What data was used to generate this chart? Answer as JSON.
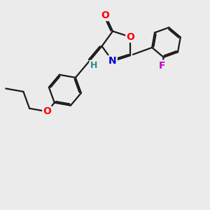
{
  "background_color": "#ebebeb",
  "bond_color": "#1a1a1a",
  "bond_width": 1.6,
  "atom_colors": {
    "O": "#ff0000",
    "N": "#0000cc",
    "F": "#cc00cc",
    "H": "#2e8b8b",
    "C": "#1a1a1a"
  },
  "font_size_atoms": 10,
  "font_size_H": 9
}
